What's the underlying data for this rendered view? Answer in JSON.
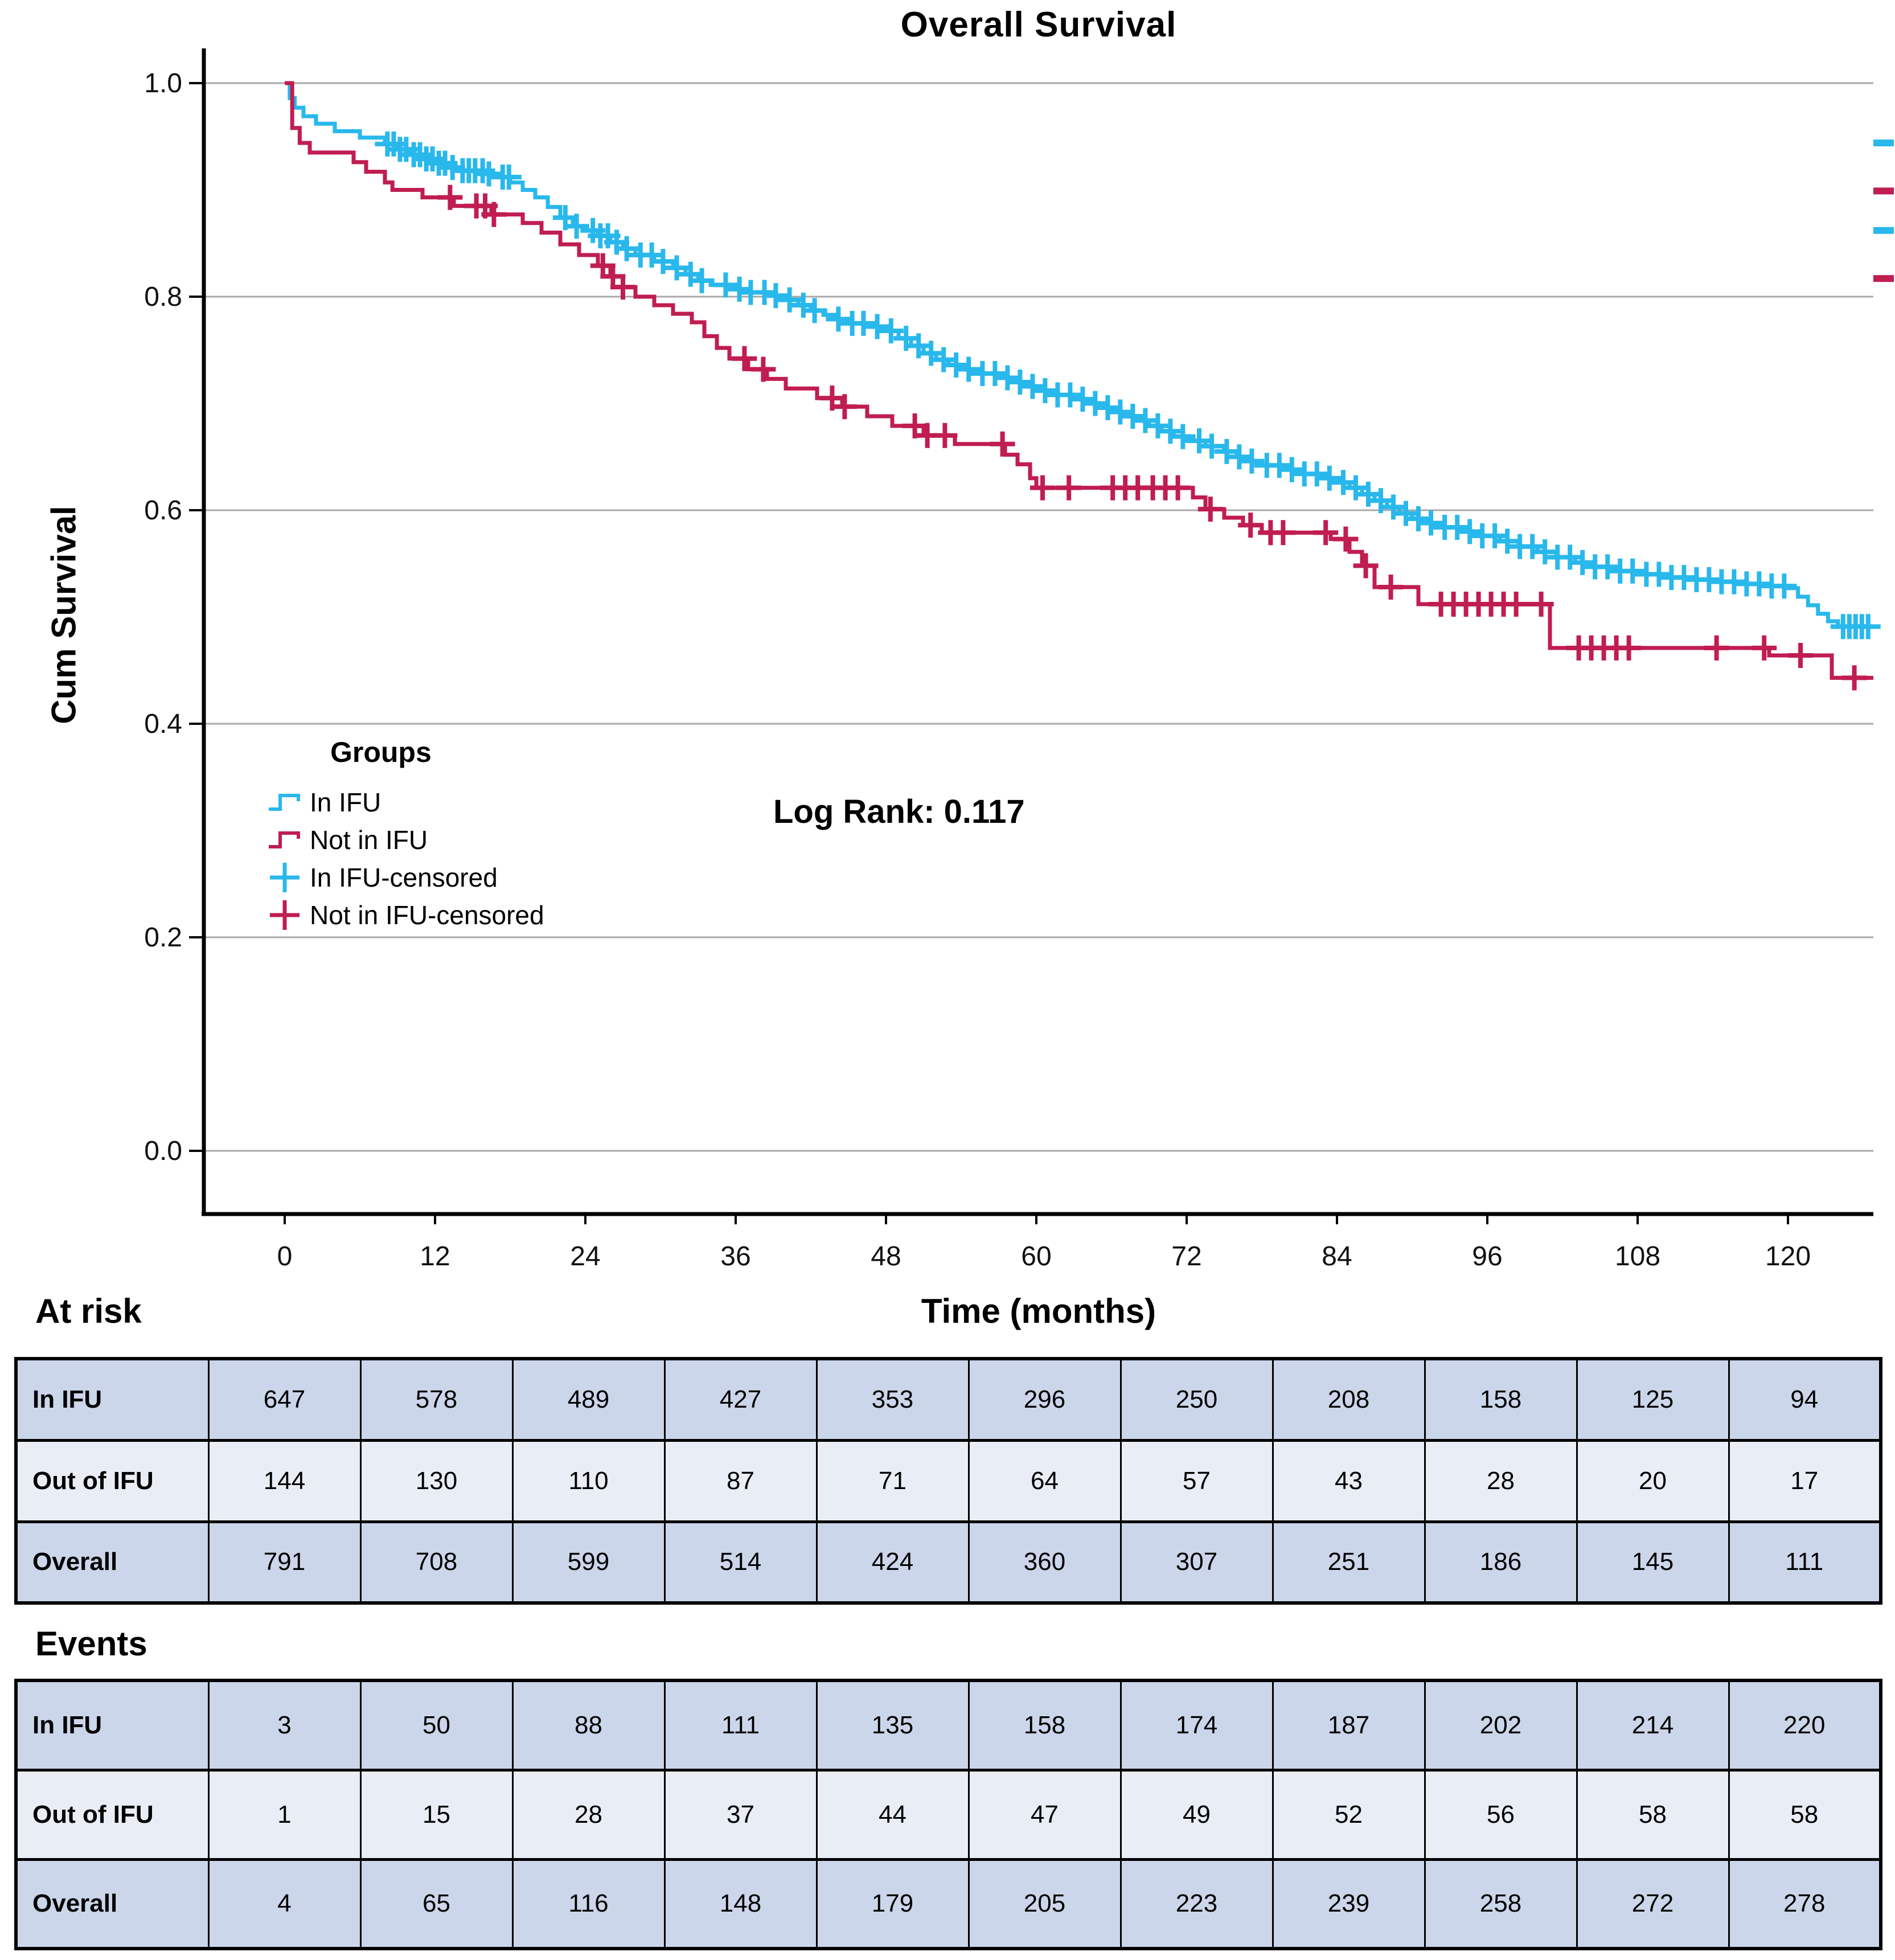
{
  "title": "Overall Survival",
  "y_axis": {
    "label": "Cum Survival",
    "ticks": [
      {
        "label": "1.0",
        "value": 1.0
      },
      {
        "label": "0.8",
        "value": 0.8
      },
      {
        "label": "0.6",
        "value": 0.6
      },
      {
        "label": "0.4",
        "value": 0.4
      },
      {
        "label": "0.2",
        "value": 0.2
      },
      {
        "label": "0.0",
        "value": 0.0
      }
    ]
  },
  "x_axis": {
    "label": "Time (months)",
    "ticks": [
      0,
      12,
      24,
      36,
      48,
      60,
      72,
      84,
      96,
      108,
      120
    ]
  },
  "legend": {
    "title": "Groups",
    "items": [
      {
        "label": "In IFU",
        "type": "step",
        "color_key": "in_ifu"
      },
      {
        "label": "Not in IFU",
        "type": "step",
        "color_key": "not_in_ifu"
      },
      {
        "label": "In IFU-censored",
        "type": "censor",
        "color_key": "in_ifu"
      },
      {
        "label": "Not in IFU-censored",
        "type": "censor",
        "color_key": "not_in_ifu"
      }
    ]
  },
  "annotations": {
    "log_rank": "Log Rank: 0.117"
  },
  "headings": {
    "at_risk": "At risk",
    "time": "Time (months)",
    "events": "Events"
  },
  "colors": {
    "in_ifu": "#29b8ec",
    "not_in_ifu": "#c01d50",
    "grid": "#a9a9a9",
    "axis": "#000000",
    "row_dark": "#ccd6ea",
    "row_light": "#e9edf6"
  },
  "chart_data": {
    "type": "line",
    "step": true,
    "title": "Overall Survival",
    "xlabel": "Time (months)",
    "ylabel": "Cum Survival",
    "xlim": [
      0,
      126.8
    ],
    "ylim": [
      0.0,
      1.0
    ],
    "grid": true,
    "legend_position": "inside-left",
    "series": [
      {
        "name": "In IFU",
        "color_key": "in_ifu",
        "points": [
          [
            0,
            1.0
          ],
          [
            0.4,
            0.986
          ],
          [
            0.8,
            0.977
          ],
          [
            1.5,
            0.969
          ],
          [
            2.5,
            0.962
          ],
          [
            4,
            0.955
          ],
          [
            6,
            0.949
          ],
          [
            8,
            0.943
          ],
          [
            9,
            0.938
          ],
          [
            10,
            0.933
          ],
          [
            11,
            0.929
          ],
          [
            12,
            0.925
          ],
          [
            13,
            0.921
          ],
          [
            14,
            0.918
          ],
          [
            16,
            0.915
          ],
          [
            17,
            0.912
          ],
          [
            18,
            0.907
          ],
          [
            19,
            0.9
          ],
          [
            20,
            0.893
          ],
          [
            21,
            0.884
          ],
          [
            22,
            0.874
          ],
          [
            23,
            0.866
          ],
          [
            24,
            0.862
          ],
          [
            25,
            0.857
          ],
          [
            26,
            0.851
          ],
          [
            27,
            0.845
          ],
          [
            28,
            0.839
          ],
          [
            29.5,
            0.833
          ],
          [
            31,
            0.827
          ],
          [
            32,
            0.821
          ],
          [
            33,
            0.815
          ],
          [
            34,
            0.811
          ],
          [
            35.5,
            0.807
          ],
          [
            37,
            0.804
          ],
          [
            38.5,
            0.801
          ],
          [
            40,
            0.797
          ],
          [
            41,
            0.792
          ],
          [
            42,
            0.787
          ],
          [
            43,
            0.783
          ],
          [
            44,
            0.779
          ],
          [
            45,
            0.775
          ],
          [
            46.5,
            0.772
          ],
          [
            48,
            0.768
          ],
          [
            49,
            0.761
          ],
          [
            50,
            0.754
          ],
          [
            51,
            0.747
          ],
          [
            52,
            0.741
          ],
          [
            53,
            0.736
          ],
          [
            54,
            0.732
          ],
          [
            55.5,
            0.728
          ],
          [
            57,
            0.724
          ],
          [
            58,
            0.72
          ],
          [
            59,
            0.716
          ],
          [
            60,
            0.712
          ],
          [
            61.5,
            0.708
          ],
          [
            63,
            0.704
          ],
          [
            64,
            0.7
          ],
          [
            65,
            0.696
          ],
          [
            66,
            0.692
          ],
          [
            67,
            0.688
          ],
          [
            68,
            0.684
          ],
          [
            69,
            0.679
          ],
          [
            70,
            0.674
          ],
          [
            71,
            0.669
          ],
          [
            72,
            0.665
          ],
          [
            73.5,
            0.66
          ],
          [
            75,
            0.655
          ],
          [
            76,
            0.65
          ],
          [
            77,
            0.646
          ],
          [
            78,
            0.642
          ],
          [
            79.5,
            0.638
          ],
          [
            81,
            0.634
          ],
          [
            82.5,
            0.63
          ],
          [
            84,
            0.626
          ],
          [
            85,
            0.621
          ],
          [
            86,
            0.615
          ],
          [
            87,
            0.609
          ],
          [
            88,
            0.603
          ],
          [
            89,
            0.597
          ],
          [
            90,
            0.592
          ],
          [
            91,
            0.588
          ],
          [
            92.5,
            0.584
          ],
          [
            94,
            0.58
          ],
          [
            95.5,
            0.576
          ],
          [
            97,
            0.571
          ],
          [
            98.5,
            0.566
          ],
          [
            100,
            0.561
          ],
          [
            101.5,
            0.556
          ],
          [
            103,
            0.551
          ],
          [
            104.5,
            0.547
          ],
          [
            106,
            0.543
          ],
          [
            108,
            0.54
          ],
          [
            110,
            0.537
          ],
          [
            112,
            0.535
          ],
          [
            114,
            0.533
          ],
          [
            116,
            0.531
          ],
          [
            118,
            0.529
          ],
          [
            120,
            0.527
          ],
          [
            120.8,
            0.519
          ],
          [
            121.6,
            0.511
          ],
          [
            122.4,
            0.503
          ],
          [
            123.2,
            0.496
          ],
          [
            124,
            0.491
          ],
          [
            126.5,
            0.491
          ]
        ],
        "censor_months": [
          8.2,
          8.7,
          9.2,
          9.7,
          10.3,
          10.8,
          11.3,
          11.8,
          12.3,
          12.8,
          13.4,
          14.2,
          14.7,
          15.2,
          15.8,
          16.3,
          17.4,
          17.9,
          22.4,
          23.3,
          24.6,
          25.2,
          25.8,
          26.5,
          27.3,
          28.4,
          29.3,
          30.2,
          31.3,
          32.4,
          33.3,
          35.2,
          36.3,
          37.2,
          38.3,
          39.2,
          40.3,
          41.4,
          42.3,
          44.2,
          45.3,
          46.2,
          47.3,
          48.4,
          49.6,
          50.6,
          51.6,
          52.6,
          53.6,
          54.6,
          55.7,
          56.7,
          57.7,
          58.7,
          59.7,
          60.7,
          61.7,
          62.7,
          63.7,
          64.7,
          65.7,
          66.7,
          67.7,
          68.7,
          69.7,
          70.7,
          71.7,
          73,
          74,
          75.2,
          76.2,
          77.2,
          78.4,
          79.4,
          80.4,
          81.4,
          82.4,
          83.4,
          84.5,
          85.5,
          86.5,
          87.5,
          88.5,
          89.5,
          90.5,
          91.5,
          92.6,
          93.6,
          94.6,
          95.6,
          96.6,
          97.6,
          98.6,
          99.6,
          100.6,
          101.6,
          102.6,
          103.6,
          104.6,
          105.6,
          106.6,
          107.6,
          108.7,
          109.7,
          110.7,
          111.7,
          112.7,
          113.7,
          114.7,
          115.7,
          116.7,
          117.7,
          118.7,
          119.7,
          124.4,
          124.9,
          125.4,
          125.9,
          126.4
        ]
      },
      {
        "name": "Not in IFU",
        "color_key": "not_in_ifu",
        "points": [
          [
            0,
            1.0
          ],
          [
            0.6,
            0.958
          ],
          [
            1.2,
            0.944
          ],
          [
            2,
            0.935
          ],
          [
            5.5,
            0.926
          ],
          [
            6.5,
            0.917
          ],
          [
            8,
            0.907
          ],
          [
            8.6,
            0.9
          ],
          [
            11,
            0.893
          ],
          [
            13.5,
            0.885
          ],
          [
            16.5,
            0.877
          ],
          [
            19,
            0.869
          ],
          [
            20.5,
            0.86
          ],
          [
            22,
            0.849
          ],
          [
            23.5,
            0.839
          ],
          [
            25,
            0.829
          ],
          [
            26,
            0.819
          ],
          [
            27,
            0.809
          ],
          [
            28,
            0.8
          ],
          [
            29.5,
            0.792
          ],
          [
            31,
            0.784
          ],
          [
            32.5,
            0.776
          ],
          [
            33.5,
            0.763
          ],
          [
            34.5,
            0.752
          ],
          [
            35.5,
            0.742
          ],
          [
            37,
            0.732
          ],
          [
            38.5,
            0.723
          ],
          [
            40,
            0.714
          ],
          [
            42.5,
            0.705
          ],
          [
            44.5,
            0.697
          ],
          [
            46.5,
            0.688
          ],
          [
            48.5,
            0.679
          ],
          [
            51,
            0.67
          ],
          [
            53.5,
            0.662
          ],
          [
            57.5,
            0.652
          ],
          [
            58.5,
            0.643
          ],
          [
            59.5,
            0.63
          ],
          [
            60,
            0.621
          ],
          [
            72.5,
            0.612
          ],
          [
            73.5,
            0.601
          ],
          [
            75,
            0.593
          ],
          [
            76.5,
            0.586
          ],
          [
            78,
            0.579
          ],
          [
            83.5,
            0.573
          ],
          [
            85,
            0.561
          ],
          [
            86,
            0.548
          ],
          [
            87,
            0.528
          ],
          [
            90.5,
            0.512
          ],
          [
            101,
            0.471
          ],
          [
            118.5,
            0.464
          ],
          [
            123.5,
            0.443
          ],
          [
            127,
            0.443
          ]
        ],
        "censor_months": [
          13.2,
          15.3,
          16,
          16.7,
          25.4,
          26.2,
          27,
          36.7,
          38.2,
          43.7,
          44.7,
          50.3,
          51.3,
          52.7,
          57.3,
          60.5,
          62.6,
          66.1,
          67.1,
          68.1,
          69.3,
          70.3,
          71.3,
          73.9,
          77.1,
          78.7,
          79.7,
          83.1,
          84.7,
          86.3,
          88.3,
          92.3,
          93.3,
          94.3,
          95.3,
          96.3,
          97.3,
          98.3,
          100.3,
          103.3,
          104.3,
          105.3,
          106.3,
          107.3,
          114.3,
          118.1,
          121,
          125.3
        ]
      }
    ],
    "edge_marks": [
      {
        "color_key": "in_ifu",
        "survival": 0.944
      },
      {
        "color_key": "not_in_ifu",
        "survival": 0.899
      },
      {
        "color_key": "in_ifu",
        "survival": 0.862
      },
      {
        "color_key": "not_in_ifu",
        "survival": 0.817
      }
    ]
  },
  "at_risk_table": {
    "row_labels": [
      "In IFU",
      "Out of IFU",
      "Overall"
    ],
    "values": [
      [
        647,
        578,
        489,
        427,
        353,
        296,
        250,
        208,
        158,
        125,
        94
      ],
      [
        144,
        130,
        110,
        87,
        71,
        64,
        57,
        43,
        28,
        20,
        17
      ],
      [
        791,
        708,
        599,
        514,
        424,
        360,
        307,
        251,
        186,
        145,
        111
      ]
    ]
  },
  "events_table": {
    "row_labels": [
      "In IFU",
      "Out of IFU",
      "Overall"
    ],
    "values": [
      [
        3,
        50,
        88,
        111,
        135,
        158,
        174,
        187,
        202,
        214,
        220
      ],
      [
        1,
        15,
        28,
        37,
        44,
        47,
        49,
        52,
        56,
        58,
        58
      ],
      [
        4,
        65,
        116,
        148,
        179,
        205,
        223,
        239,
        258,
        272,
        278
      ]
    ]
  }
}
